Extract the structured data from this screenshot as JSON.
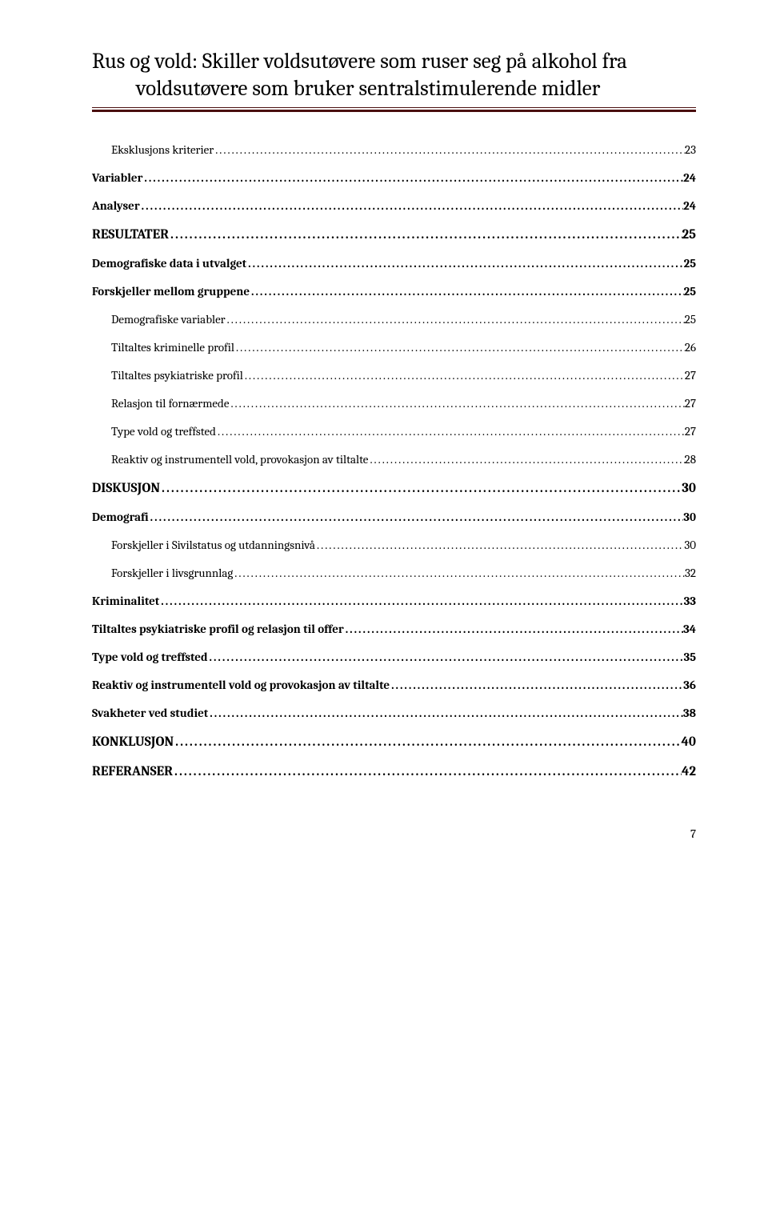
{
  "header": {
    "line1": "Rus og vold: Skiller voldsutøvere som ruser seg på alkohol fra",
    "line2": "voldsutøvere som bruker sentralstimulerende midler"
  },
  "colors": {
    "rule": "#4a0e0e",
    "text": "#000000",
    "background": "#ffffff"
  },
  "typography": {
    "header_fontsize_pt": 20,
    "toc_lvl1_fontsize_pt": 13,
    "toc_lvl2_fontsize_pt": 11,
    "toc_lvl3_fontsize_pt": 11,
    "font_family": "Cambria, serif"
  },
  "toc": [
    {
      "label": "Eksklusjons kriterier",
      "page": "23",
      "level": 3
    },
    {
      "label": "Variabler",
      "page": "24",
      "level": 2
    },
    {
      "label": "Analyser",
      "page": "24",
      "level": 2
    },
    {
      "label": "RESULTATER",
      "page": "25",
      "level": 1
    },
    {
      "label": "Demografiske data i utvalget",
      "page": "25",
      "level": 2
    },
    {
      "label": "Forskjeller mellom gruppene",
      "page": "25",
      "level": 2
    },
    {
      "label": "Demografiske variabler",
      "page": "25",
      "level": 3
    },
    {
      "label": "Tiltaltes kriminelle profil",
      "page": "26",
      "level": 3
    },
    {
      "label": "Tiltaltes psykiatriske profil",
      "page": "27",
      "level": 3
    },
    {
      "label": "Relasjon til fornærmede",
      "page": "27",
      "level": 3
    },
    {
      "label": "Type vold og treffsted",
      "page": "27",
      "level": 3
    },
    {
      "label": "Reaktiv og instrumentell vold, provokasjon av tiltalte",
      "page": "28",
      "level": 3
    },
    {
      "label": "DISKUSJON",
      "page": "30",
      "level": 1
    },
    {
      "label": "Demografi",
      "page": "30",
      "level": 2
    },
    {
      "label": "Forskjeller i Sivilstatus og utdanningsnivå",
      "page": "30",
      "level": 3
    },
    {
      "label": "Forskjeller i livsgrunnlag",
      "page": "32",
      "level": 3
    },
    {
      "label": "Kriminalitet",
      "page": "33",
      "level": 2
    },
    {
      "label": "Tiltaltes psykiatriske profil og relasjon til offer",
      "page": "34",
      "level": 2
    },
    {
      "label": "Type vold og treffsted",
      "page": "35",
      "level": 2
    },
    {
      "label": "Reaktiv og instrumentell vold og provokasjon av tiltalte",
      "page": "36",
      "level": 2
    },
    {
      "label": "Svakheter ved studiet",
      "page": "38",
      "level": 2
    },
    {
      "label": "KONKLUSJON",
      "page": "40",
      "level": 1
    },
    {
      "label": "REFERANSER",
      "page": "42",
      "level": 1
    }
  ],
  "page_number": "7"
}
